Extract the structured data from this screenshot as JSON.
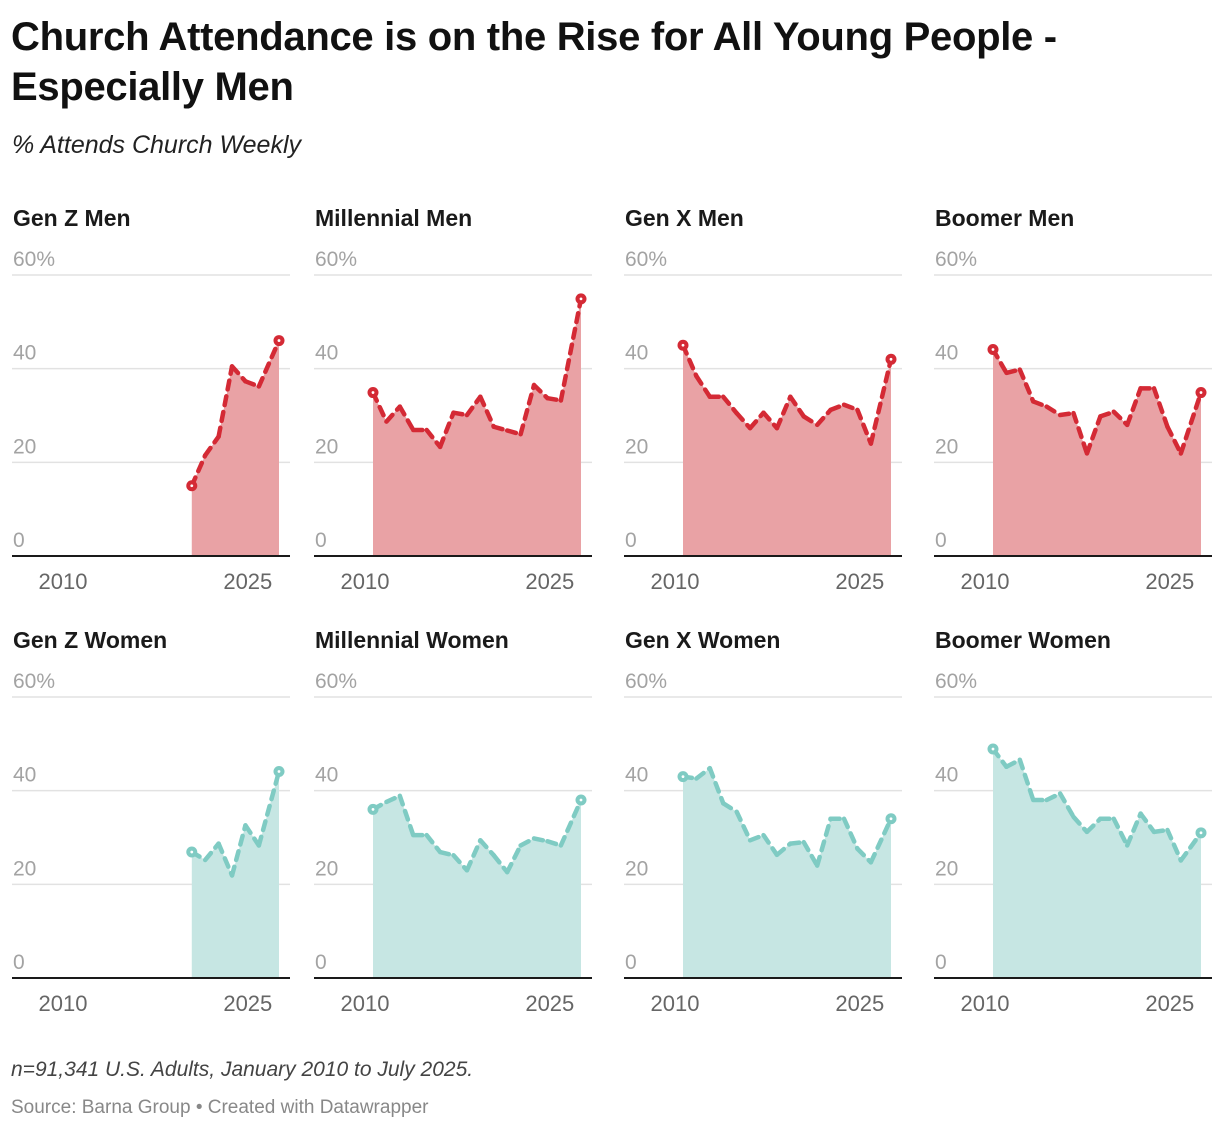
{
  "header": {
    "title": "Church Attendance is on the Rise for All Young People - Especially Men",
    "subtitle": "% Attends Church Weekly"
  },
  "footer": {
    "notes": "n=91,341 U.S. Adults, January 2010 to July 2025.",
    "source": "Source: Barna Group • Created with Datawrapper"
  },
  "colors": {
    "men_line": "#d42a35",
    "men_fill": "#e9a2a5",
    "women_line": "#7fcbc3",
    "women_fill": "#c6e6e3",
    "grid": "#e2e2e2",
    "axis_label": "#a3a3a3",
    "year_label": "#666666"
  },
  "chart_data": [
    {
      "type": "area",
      "title": "Gen Z Men",
      "group": "men",
      "ylabel": "% Attends Church Weekly",
      "ylim": [
        0,
        60
      ],
      "yticks": [
        "0",
        "20",
        "40",
        "60%"
      ],
      "xticks": [
        "2010",
        "2025"
      ],
      "x": [
        2019,
        2020,
        2021,
        2022,
        2023,
        2024,
        2025.5
      ],
      "values": [
        15,
        21.5,
        25.5,
        40.5,
        37.3,
        36.2,
        46
      ]
    },
    {
      "type": "area",
      "title": "Millennial Men",
      "group": "men",
      "ylim": [
        0,
        60
      ],
      "yticks": [
        "0",
        "20",
        "40",
        "60%"
      ],
      "xticks": [
        "2010",
        "2025"
      ],
      "x": [
        2010,
        2011,
        2012,
        2013,
        2014,
        2015,
        2016,
        2017,
        2018,
        2019,
        2020,
        2021,
        2022,
        2023,
        2024,
        2025.5
      ],
      "values": [
        34.9,
        28.7,
        31.9,
        26.9,
        26.9,
        23.3,
        30.6,
        30.1,
        34,
        27.6,
        26.8,
        26,
        36.5,
        33.7,
        33.2,
        54.9
      ]
    },
    {
      "type": "area",
      "title": "Gen X Men",
      "group": "men",
      "ylim": [
        0,
        60
      ],
      "yticks": [
        "0",
        "20",
        "40",
        "60%"
      ],
      "xticks": [
        "2010",
        "2025"
      ],
      "x": [
        2010,
        2011,
        2012,
        2013,
        2014,
        2015,
        2016,
        2017,
        2018,
        2019,
        2020,
        2021,
        2022,
        2023,
        2024,
        2025.5
      ],
      "values": [
        45,
        38.4,
        34,
        34,
        30.5,
        27.3,
        30.6,
        27.3,
        34,
        29.8,
        28,
        31.2,
        32.3,
        31.2,
        24,
        42
      ]
    },
    {
      "type": "area",
      "title": "Boomer Men",
      "group": "men",
      "ylim": [
        0,
        60
      ],
      "yticks": [
        "0",
        "20",
        "40",
        "60%"
      ],
      "xticks": [
        "2010",
        "2025"
      ],
      "x": [
        2010,
        2011,
        2012,
        2013,
        2014,
        2015,
        2016,
        2017,
        2018,
        2019,
        2020,
        2021,
        2022,
        2023,
        2024,
        2025.5
      ],
      "values": [
        44.1,
        39.1,
        39.8,
        33,
        31.9,
        30.1,
        30.5,
        21.9,
        29.8,
        30.8,
        28,
        35.8,
        35.8,
        27.6,
        21.9,
        34.9
      ]
    },
    {
      "type": "area",
      "title": "Gen Z Women",
      "group": "women",
      "ylim": [
        0,
        60
      ],
      "yticks": [
        "0",
        "20",
        "40",
        "60%"
      ],
      "xticks": [
        "2010",
        "2025"
      ],
      "x": [
        2019,
        2020,
        2021,
        2022,
        2023,
        2024,
        2025.5
      ],
      "values": [
        26.9,
        25.2,
        28.7,
        21.9,
        32.6,
        28.3,
        44.1
      ]
    },
    {
      "type": "area",
      "title": "Millennial Women",
      "group": "women",
      "ylim": [
        0,
        60
      ],
      "yticks": [
        "0",
        "20",
        "40",
        "60%"
      ],
      "xticks": [
        "2010",
        "2025"
      ],
      "x": [
        2010,
        2011,
        2012,
        2013,
        2014,
        2015,
        2016,
        2017,
        2018,
        2019,
        2020,
        2021,
        2022,
        2023,
        2024,
        2025.5
      ],
      "values": [
        36,
        37.6,
        38.9,
        30.5,
        30.5,
        26.9,
        26.2,
        23,
        29.4,
        26.2,
        22.6,
        28.3,
        29.8,
        29.2,
        28.3,
        38
      ]
    },
    {
      "type": "area",
      "title": "Gen X Women",
      "group": "women",
      "ylim": [
        0,
        60
      ],
      "yticks": [
        "0",
        "20",
        "40",
        "60%"
      ],
      "xticks": [
        "2010",
        "2025"
      ],
      "x": [
        2010,
        2011,
        2012,
        2013,
        2014,
        2015,
        2016,
        2017,
        2018,
        2019,
        2020,
        2021,
        2022,
        2023,
        2024,
        2025.5
      ],
      "values": [
        43,
        42.6,
        44.8,
        37.3,
        35.5,
        29.4,
        30.5,
        26.3,
        28.7,
        29,
        24,
        34,
        34,
        27.6,
        24.7,
        34
      ]
    },
    {
      "type": "area",
      "title": "Boomer Women",
      "group": "women",
      "ylim": [
        0,
        60
      ],
      "yticks": [
        "0",
        "20",
        "40",
        "60%"
      ],
      "xticks": [
        "2010",
        "2025"
      ],
      "x": [
        2010,
        2011,
        2012,
        2013,
        2014,
        2015,
        2016,
        2017,
        2018,
        2019,
        2020,
        2021,
        2022,
        2023,
        2024,
        2025.5
      ],
      "values": [
        48.9,
        45.1,
        46.6,
        38,
        38,
        39.4,
        34.4,
        31.2,
        34,
        34,
        28.3,
        35.1,
        31.2,
        31.6,
        25.1,
        31
      ]
    }
  ]
}
